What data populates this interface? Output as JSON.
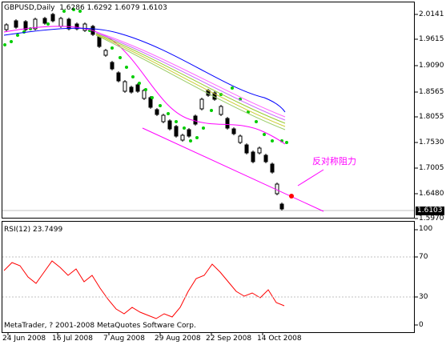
{
  "header": {
    "symbol": "GBPUSD,Daily",
    "open": "1.6286",
    "high": "1.6292",
    "low": "1.6079",
    "close": "1.6103"
  },
  "rsi": {
    "label": "RSI(12) 23.7499"
  },
  "copyright": "MetaTrader, ? 2001-2008 MetaQuotes Software Corp.",
  "annotation": "反对称阻力",
  "current_price": "1.6103",
  "price_axis": [
    "2.0141",
    "1.9615",
    "1.9090",
    "1.8565",
    "1.8055",
    "1.7530",
    "1.7005",
    "1.6480",
    "1.5970"
  ],
  "rsi_axis": [
    "100",
    "70",
    "30",
    "0"
  ],
  "date_axis": [
    "24 Jun 2008",
    "16 Jul 2008",
    "7 Aug 2008",
    "29 Aug 2008",
    "22 Sep 2008",
    "14 Oct 2008"
  ],
  "colors": {
    "bull": "#000000",
    "bear": "#000000",
    "sar": "#00cc00",
    "rsi": "#ff0000",
    "trendline": "#ff00ff",
    "ma_fast": "#ff00ff",
    "ma_slow": "#0000ff",
    "annotation": "#ff00ff"
  }
}
